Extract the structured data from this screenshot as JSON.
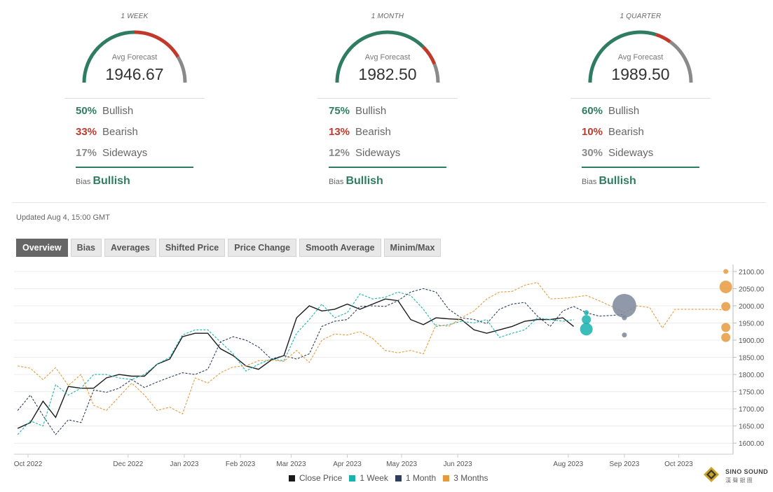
{
  "panels": [
    {
      "period": "1 WEEK",
      "avg_label": "Avg Forecast",
      "avg_value": "1946.67",
      "bullish_pct": "50%",
      "bullish_label": "Bullish",
      "bearish_pct": "33%",
      "bearish_label": "Bearish",
      "sideways_pct": "17%",
      "sideways_label": "Sideways",
      "bias_label": "Bias",
      "bias_value": "Bullish",
      "split": [
        0.5,
        0.33,
        0.17
      ]
    },
    {
      "period": "1 MONTH",
      "avg_label": "Avg Forecast",
      "avg_value": "1982.50",
      "bullish_pct": "75%",
      "bullish_label": "Bullish",
      "bearish_pct": "13%",
      "bearish_label": "Bearish",
      "sideways_pct": "12%",
      "sideways_label": "Sideways",
      "bias_label": "Bias",
      "bias_value": "Bullish",
      "split": [
        0.75,
        0.13,
        0.12
      ]
    },
    {
      "period": "1 QUARTER",
      "avg_label": "Avg Forecast",
      "avg_value": "1989.50",
      "bullish_pct": "60%",
      "bullish_label": "Bullish",
      "bearish_pct": "10%",
      "bearish_label": "Bearish",
      "sideways_pct": "30%",
      "sideways_label": "Sideways",
      "bias_label": "Bias",
      "bias_value": "Bullish",
      "split": [
        0.6,
        0.1,
        0.3
      ]
    }
  ],
  "colors": {
    "bullish": "#2e7d62",
    "bearish": "#c0392b",
    "sideways": "#8a8a8a",
    "close": "#1a1a1a",
    "week": "#19b3ae",
    "month": "#2e3e5c",
    "quarter": "#e69a3e"
  },
  "updated": "Updated Aug 4, 15:00 GMT",
  "tabs": [
    "Overview",
    "Bias",
    "Averages",
    "Shifted Price",
    "Price Change",
    "Smooth Average",
    "Minim/Max"
  ],
  "active_tab": 0,
  "brand": {
    "name": "SINO SOUND",
    "sub": "漢 聲 銀 團"
  },
  "chart_data": {
    "type": "line",
    "x_ticks": [
      "Oct 2022",
      "Dec 2022",
      "Jan 2023",
      "Feb 2023",
      "Mar 2023",
      "Apr 2023",
      "May 2023",
      "Jun 2023",
      "Aug 2023",
      "Sep 2023",
      "Oct 2023"
    ],
    "y_ticks": [
      "2100.00",
      "2050.00",
      "2000.00",
      "1950.00",
      "1900.00",
      "1850.00",
      "1800.00",
      "1750.00",
      "1700.00",
      "1650.00",
      "1600.00"
    ],
    "ylim": [
      1580,
      2110
    ],
    "xlim": [
      "2022-09-29",
      "2023-10-31"
    ],
    "legend": [
      "Close Price",
      "1 Week",
      "1 Month",
      "3 Months"
    ],
    "legend_position": "bottom",
    "series": [
      {
        "name": "Close Price",
        "style": "solid",
        "x": [
          "2022-10-01",
          "2022-10-08",
          "2022-10-15",
          "2022-10-22",
          "2022-10-29",
          "2022-11-05",
          "2022-11-12",
          "2022-11-19",
          "2022-11-26",
          "2022-12-03",
          "2022-12-10",
          "2022-12-17",
          "2022-12-24",
          "2022-12-31",
          "2023-01-07",
          "2023-01-14",
          "2023-01-21",
          "2023-01-28",
          "2023-02-04",
          "2023-02-11",
          "2023-02-18",
          "2023-02-25",
          "2023-03-04",
          "2023-03-11",
          "2023-03-18",
          "2023-03-25",
          "2023-04-01",
          "2023-04-08",
          "2023-04-15",
          "2023-04-22",
          "2023-04-29",
          "2023-05-06",
          "2023-05-13",
          "2023-05-20",
          "2023-05-27",
          "2023-06-03",
          "2023-06-10",
          "2023-06-17",
          "2023-06-24",
          "2023-07-01",
          "2023-07-08",
          "2023-07-15",
          "2023-07-22",
          "2023-07-29",
          "2023-08-04"
        ],
        "y": [
          1643,
          1660,
          1722,
          1675,
          1765,
          1760,
          1760,
          1790,
          1800,
          1795,
          1795,
          1830,
          1845,
          1910,
          1920,
          1920,
          1875,
          1855,
          1825,
          1815,
          1842,
          1855,
          1965,
          2000,
          1985,
          1990,
          2005,
          1990,
          2005,
          2020,
          2015,
          1960,
          1945,
          1965,
          1962,
          1960,
          1930,
          1920,
          1930,
          1940,
          1955,
          1960,
          1960,
          1965,
          1940
        ]
      },
      {
        "name": "1 Week",
        "style": "dashed",
        "x": [
          "2022-10-01",
          "2022-10-08",
          "2022-10-15",
          "2022-10-22",
          "2022-10-29",
          "2022-11-05",
          "2022-11-12",
          "2022-11-19",
          "2022-11-26",
          "2022-12-03",
          "2022-12-10",
          "2022-12-17",
          "2022-12-24",
          "2022-12-31",
          "2023-01-07",
          "2023-01-14",
          "2023-01-21",
          "2023-01-28",
          "2023-02-04",
          "2023-02-11",
          "2023-02-18",
          "2023-02-25",
          "2023-03-04",
          "2023-03-11",
          "2023-03-18",
          "2023-03-25",
          "2023-04-01",
          "2023-04-08",
          "2023-04-15",
          "2023-04-22",
          "2023-04-29",
          "2023-05-06",
          "2023-05-13",
          "2023-05-20",
          "2023-05-27",
          "2023-06-03",
          "2023-06-10",
          "2023-06-17",
          "2023-06-24",
          "2023-07-01",
          "2023-07-08",
          "2023-07-15",
          "2023-07-22",
          "2023-07-29",
          "2023-08-04"
        ],
        "y": [
          1625,
          1665,
          1650,
          1770,
          1740,
          1760,
          1800,
          1800,
          1790,
          1785,
          1800,
          1830,
          1850,
          1915,
          1930,
          1930,
          1895,
          1860,
          1810,
          1830,
          1845,
          1840,
          1920,
          1960,
          2005,
          1965,
          1980,
          2035,
          2020,
          2025,
          2040,
          2030,
          1990,
          1940,
          1945,
          1955,
          1950,
          1960,
          1908,
          1920,
          1930,
          1965,
          1960,
          1955,
          1960
        ]
      },
      {
        "name": "1 Month",
        "style": "dashed",
        "x": [
          "2022-10-01",
          "2022-10-08",
          "2022-10-15",
          "2022-10-22",
          "2022-10-29",
          "2022-11-05",
          "2022-11-12",
          "2022-11-19",
          "2022-11-26",
          "2022-12-03",
          "2022-12-10",
          "2022-12-17",
          "2022-12-24",
          "2022-12-31",
          "2023-01-07",
          "2023-01-14",
          "2023-01-21",
          "2023-01-28",
          "2023-02-04",
          "2023-02-11",
          "2023-02-18",
          "2023-02-25",
          "2023-03-04",
          "2023-03-11",
          "2023-03-18",
          "2023-03-25",
          "2023-04-01",
          "2023-04-08",
          "2023-04-15",
          "2023-04-22",
          "2023-04-29",
          "2023-05-06",
          "2023-05-13",
          "2023-05-20",
          "2023-05-27",
          "2023-06-03",
          "2023-06-10",
          "2023-06-17",
          "2023-06-24",
          "2023-07-01",
          "2023-07-08",
          "2023-07-15",
          "2023-07-22",
          "2023-07-29",
          "2023-08-04",
          "2023-08-11",
          "2023-08-18",
          "2023-08-25",
          "2023-09-01"
        ],
        "y": [
          1695,
          1740,
          1680,
          1625,
          1668,
          1660,
          1755,
          1748,
          1760,
          1785,
          1762,
          1778,
          1792,
          1805,
          1800,
          1815,
          1895,
          1910,
          1900,
          1880,
          1845,
          1855,
          1845,
          1860,
          1940,
          1955,
          1960,
          1998,
          2000,
          1998,
          2015,
          2040,
          2050,
          2040,
          1990,
          1965,
          1960,
          1948,
          1990,
          2005,
          2010,
          1970,
          1940,
          1985,
          1998,
          1980,
          1970,
          1972,
          1975
        ]
      },
      {
        "name": "3 Months",
        "style": "dashed",
        "x": [
          "2022-10-01",
          "2022-10-08",
          "2022-10-15",
          "2022-10-22",
          "2022-10-29",
          "2022-11-05",
          "2022-11-12",
          "2022-11-19",
          "2022-11-26",
          "2022-12-03",
          "2022-12-10",
          "2022-12-17",
          "2022-12-24",
          "2022-12-31",
          "2023-01-07",
          "2023-01-14",
          "2023-01-21",
          "2023-01-28",
          "2023-02-04",
          "2023-02-11",
          "2023-02-18",
          "2023-02-25",
          "2023-03-04",
          "2023-03-11",
          "2023-03-18",
          "2023-03-25",
          "2023-04-01",
          "2023-04-08",
          "2023-04-15",
          "2023-04-22",
          "2023-04-29",
          "2023-05-06",
          "2023-05-13",
          "2023-05-20",
          "2023-05-27",
          "2023-06-03",
          "2023-06-10",
          "2023-06-17",
          "2023-06-24",
          "2023-07-01",
          "2023-07-08",
          "2023-07-15",
          "2023-07-22",
          "2023-07-29",
          "2023-08-04",
          "2023-08-11",
          "2023-08-18",
          "2023-08-25",
          "2023-09-01",
          "2023-09-08",
          "2023-09-15",
          "2023-09-22",
          "2023-09-29",
          "2023-10-06",
          "2023-10-13",
          "2023-10-20",
          "2023-10-27"
        ],
        "y": [
          1825,
          1818,
          1785,
          1820,
          1768,
          1800,
          1710,
          1695,
          1735,
          1775,
          1740,
          1695,
          1705,
          1685,
          1790,
          1775,
          1805,
          1822,
          1825,
          1840,
          1842,
          1838,
          1870,
          1835,
          1900,
          1918,
          1915,
          1925,
          1905,
          1870,
          1863,
          1870,
          1860,
          1945,
          1940,
          1965,
          1985,
          2020,
          2040,
          2042,
          2060,
          2068,
          2020,
          2022,
          2025,
          2030,
          2015,
          1998,
          1980,
          2000,
          1995,
          1935,
          1990,
          1990,
          1990,
          1990,
          1988
        ]
      }
    ],
    "forecast_bubbles": [
      {
        "series": "1 Week",
        "x": "2023-08-11",
        "values": [
          1980,
          1960,
          1932
        ],
        "sizes": [
          "small",
          "medium",
          "large"
        ]
      },
      {
        "series": "1 Month",
        "x": "2023-09-01",
        "values": [
          2000,
          1965,
          1915
        ],
        "sizes": [
          "large",
          "small",
          "small"
        ]
      },
      {
        "series": "3 Months",
        "x": "2023-10-27",
        "values": [
          2100,
          2055,
          1998,
          1937,
          1908
        ],
        "sizes": [
          "small",
          "large",
          "medium",
          "medium",
          "medium"
        ]
      }
    ]
  }
}
